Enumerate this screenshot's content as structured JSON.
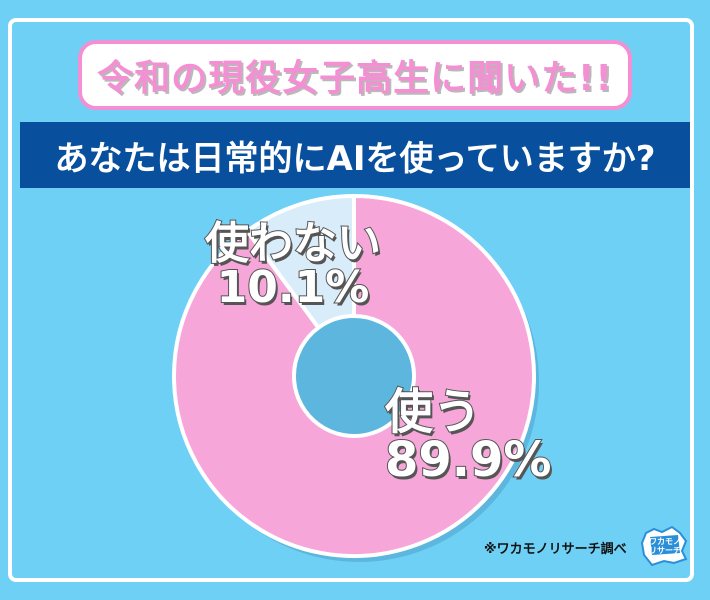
{
  "header": {
    "title": "令和の現役女子高生に聞いた!!",
    "question": "あなたは日常的にAIを使っていますか?"
  },
  "chart_data": {
    "type": "pie",
    "donut": true,
    "categories": [
      "使う",
      "使わない"
    ],
    "values": [
      89.9,
      10.1
    ],
    "value_labels": [
      "89.9%",
      "10.1%"
    ],
    "colors": [
      "#f7a6d9",
      "#d8ecfa"
    ],
    "start": "top",
    "direction": "clockwise"
  },
  "footer": {
    "source": "※ワカモノリサーチ調べ",
    "logo_text": "ワカモノリサーチ"
  }
}
